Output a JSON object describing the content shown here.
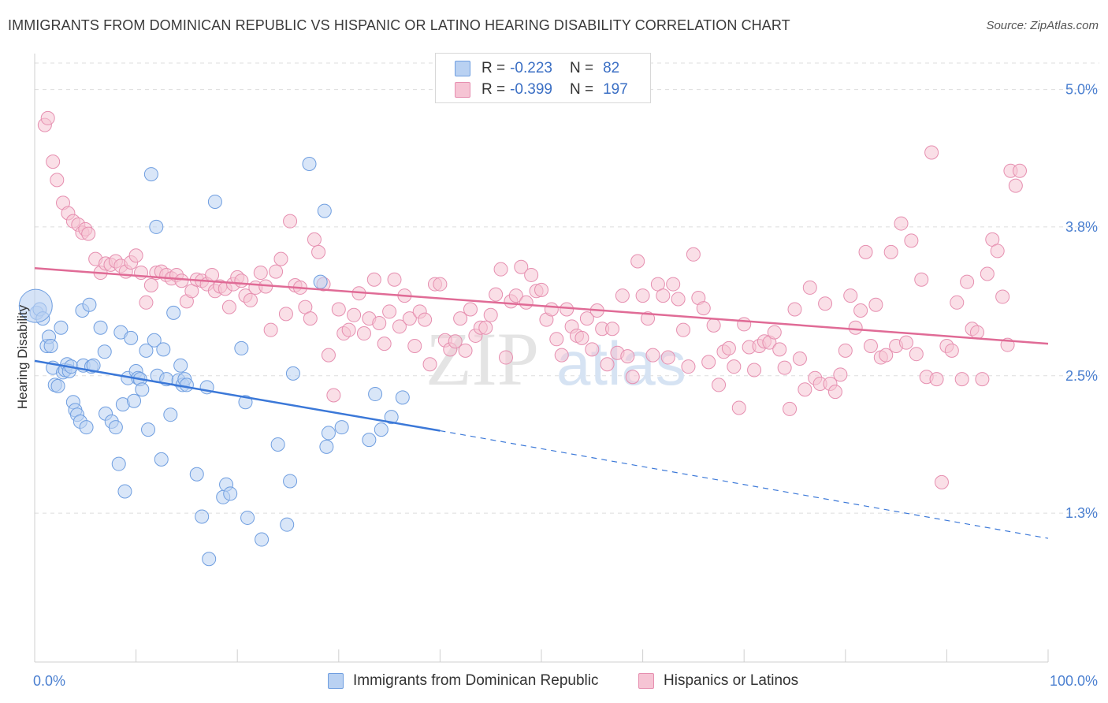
{
  "title": "IMMIGRANTS FROM DOMINICAN REPUBLIC VS HISPANIC OR LATINO HEARING DISABILITY CORRELATION CHART",
  "source": "Source: ZipAtlas.com",
  "colors": {
    "blue": "#3b78d8",
    "blue_fill": "#b9d1f2",
    "pink": "#e06b96",
    "pink_fill": "#f6c4d4",
    "tick": "#4a7fd0",
    "grid": "#dddddd"
  },
  "legend": {
    "r_label": "R =",
    "n_label": "N =",
    "rows": [
      {
        "r": "-0.223",
        "n": "82"
      },
      {
        "r": "-0.399",
        "n": "197"
      }
    ]
  },
  "bottom_legend": [
    "Immigrants from Dominican Republic",
    "Hispanics or Latinos"
  ],
  "chart_data": {
    "type": "scatter",
    "title": "IMMIGRANTS FROM DOMINICAN REPUBLIC VS HISPANIC OR LATINO HEARING DISABILITY CORRELATION CHART",
    "xlabel": "",
    "ylabel": "Hearing Disability",
    "xlim": [
      0,
      100
    ],
    "ylim": [
      0.0,
      5.3
    ],
    "x_tick_labels": [
      "0.0%",
      "100.0%"
    ],
    "y_ticks": [
      1.3,
      2.5,
      3.8,
      5.0
    ],
    "y_tick_labels": [
      "1.3%",
      "2.5%",
      "3.8%",
      "5.0%"
    ],
    "grid": true,
    "legend_position": "top-center",
    "series": [
      {
        "name": "Immigrants from Dominican Republic",
        "color": "#3b78d8",
        "trend": {
          "x": [
            0,
            40
          ],
          "y": [
            2.63,
            2.02
          ],
          "dashed_to": [
            100,
            1.08
          ]
        },
        "points": [
          [
            0.2,
            3.05
          ],
          [
            0.5,
            3.08
          ],
          [
            0.8,
            3.0
          ],
          [
            1.2,
            2.76
          ],
          [
            1.4,
            2.84
          ],
          [
            1.6,
            2.76
          ],
          [
            1.8,
            2.57
          ],
          [
            2.0,
            2.42
          ],
          [
            2.3,
            2.41
          ],
          [
            2.6,
            2.92
          ],
          [
            2.8,
            2.53
          ],
          [
            3.0,
            2.55
          ],
          [
            3.2,
            2.6
          ],
          [
            3.4,
            2.54
          ],
          [
            3.6,
            2.58
          ],
          [
            3.8,
            2.27
          ],
          [
            4.0,
            2.2
          ],
          [
            4.2,
            2.16
          ],
          [
            4.5,
            2.1
          ],
          [
            4.7,
            3.07
          ],
          [
            4.8,
            2.59
          ],
          [
            5.1,
            2.05
          ],
          [
            5.4,
            3.12
          ],
          [
            5.6,
            2.58
          ],
          [
            5.8,
            2.59
          ],
          [
            6.5,
            2.92
          ],
          [
            6.9,
            2.71
          ],
          [
            7.0,
            2.17
          ],
          [
            7.6,
            2.1
          ],
          [
            8.0,
            2.05
          ],
          [
            8.3,
            1.73
          ],
          [
            8.5,
            2.88
          ],
          [
            8.7,
            2.25
          ],
          [
            8.9,
            1.49
          ],
          [
            9.2,
            2.48
          ],
          [
            9.5,
            2.83
          ],
          [
            9.8,
            2.28
          ],
          [
            10.0,
            2.54
          ],
          [
            10.2,
            2.48
          ],
          [
            10.4,
            2.47
          ],
          [
            10.6,
            2.38
          ],
          [
            11.0,
            2.72
          ],
          [
            11.2,
            2.03
          ],
          [
            11.5,
            4.26
          ],
          [
            11.8,
            2.81
          ],
          [
            12.0,
            3.8
          ],
          [
            12.1,
            2.5
          ],
          [
            12.5,
            1.77
          ],
          [
            12.7,
            2.73
          ],
          [
            13.0,
            2.47
          ],
          [
            13.4,
            2.16
          ],
          [
            13.7,
            3.05
          ],
          [
            14.2,
            2.46
          ],
          [
            14.4,
            2.59
          ],
          [
            14.6,
            2.42
          ],
          [
            14.8,
            2.47
          ],
          [
            15.0,
            2.42
          ],
          [
            16.0,
            1.64
          ],
          [
            16.5,
            1.27
          ],
          [
            17.0,
            2.4
          ],
          [
            17.2,
            0.9
          ],
          [
            17.8,
            4.02
          ],
          [
            18.6,
            1.44
          ],
          [
            18.9,
            1.55
          ],
          [
            19.3,
            1.47
          ],
          [
            20.4,
            2.74
          ],
          [
            20.8,
            2.27
          ],
          [
            21.0,
            1.26
          ],
          [
            22.4,
            1.07
          ],
          [
            24.0,
            1.9
          ],
          [
            24.9,
            1.2
          ],
          [
            25.2,
            1.58
          ],
          [
            25.5,
            2.52
          ],
          [
            27.1,
            4.35
          ],
          [
            28.2,
            3.32
          ],
          [
            28.6,
            3.94
          ],
          [
            28.8,
            1.88
          ],
          [
            29.0,
            2.0
          ],
          [
            30.3,
            2.05
          ],
          [
            33.0,
            1.94
          ],
          [
            33.6,
            2.34
          ],
          [
            34.2,
            2.03
          ],
          [
            35.2,
            2.14
          ],
          [
            36.3,
            2.31
          ]
        ]
      },
      {
        "name": "Hispanics or Latinos",
        "color": "#e06b96",
        "trend": {
          "x": [
            0,
            100
          ],
          "y": [
            3.44,
            2.78
          ]
        },
        "points": [
          [
            1.0,
            4.69
          ],
          [
            1.3,
            4.75
          ],
          [
            1.8,
            4.37
          ],
          [
            2.2,
            4.21
          ],
          [
            2.8,
            4.01
          ],
          [
            3.3,
            3.92
          ],
          [
            3.8,
            3.85
          ],
          [
            4.3,
            3.82
          ],
          [
            4.7,
            3.75
          ],
          [
            5.0,
            3.78
          ],
          [
            5.3,
            3.74
          ],
          [
            6.0,
            3.52
          ],
          [
            6.5,
            3.4
          ],
          [
            7.0,
            3.48
          ],
          [
            7.5,
            3.47
          ],
          [
            8.0,
            3.5
          ],
          [
            8.5,
            3.46
          ],
          [
            9.0,
            3.41
          ],
          [
            9.5,
            3.49
          ],
          [
            10.0,
            3.55
          ],
          [
            10.5,
            3.4
          ],
          [
            11.0,
            3.14
          ],
          [
            11.5,
            3.29
          ],
          [
            12.0,
            3.4
          ],
          [
            12.5,
            3.41
          ],
          [
            13.0,
            3.38
          ],
          [
            13.5,
            3.35
          ],
          [
            14.0,
            3.38
          ],
          [
            14.5,
            3.33
          ],
          [
            15.0,
            3.15
          ],
          [
            15.5,
            3.24
          ],
          [
            16.0,
            3.34
          ],
          [
            16.5,
            3.33
          ],
          [
            17.0,
            3.3
          ],
          [
            17.5,
            3.38
          ],
          [
            17.8,
            3.24
          ],
          [
            18.3,
            3.28
          ],
          [
            18.8,
            3.26
          ],
          [
            19.2,
            3.1
          ],
          [
            19.6,
            3.3
          ],
          [
            20.0,
            3.36
          ],
          [
            20.4,
            3.33
          ],
          [
            20.8,
            3.2
          ],
          [
            21.3,
            3.16
          ],
          [
            21.8,
            3.27
          ],
          [
            22.3,
            3.4
          ],
          [
            22.8,
            3.28
          ],
          [
            23.3,
            2.9
          ],
          [
            23.8,
            3.41
          ],
          [
            24.3,
            3.52
          ],
          [
            24.8,
            3.04
          ],
          [
            25.2,
            3.85
          ],
          [
            25.7,
            3.29
          ],
          [
            26.2,
            3.27
          ],
          [
            26.7,
            3.1
          ],
          [
            27.2,
            3.0
          ],
          [
            27.6,
            3.69
          ],
          [
            28.0,
            3.58
          ],
          [
            28.5,
            3.3
          ],
          [
            29.0,
            2.68
          ],
          [
            29.5,
            2.33
          ],
          [
            30.0,
            3.08
          ],
          [
            30.5,
            2.87
          ],
          [
            31.0,
            2.9
          ],
          [
            31.5,
            3.03
          ],
          [
            32.0,
            3.22
          ],
          [
            32.5,
            2.87
          ],
          [
            33.0,
            3.0
          ],
          [
            33.5,
            3.34
          ],
          [
            34.0,
            2.96
          ],
          [
            34.5,
            2.78
          ],
          [
            35.0,
            3.06
          ],
          [
            35.5,
            3.34
          ],
          [
            36.0,
            2.93
          ],
          [
            36.5,
            3.2
          ],
          [
            37.0,
            3.0
          ],
          [
            37.5,
            2.76
          ],
          [
            38.0,
            3.06
          ],
          [
            38.5,
            2.99
          ],
          [
            39.0,
            2.6
          ],
          [
            39.5,
            3.3
          ],
          [
            40.0,
            3.3
          ],
          [
            40.5,
            2.81
          ],
          [
            41.0,
            2.73
          ],
          [
            41.5,
            2.8
          ],
          [
            42.0,
            3.0
          ],
          [
            42.5,
            2.72
          ],
          [
            43.0,
            3.08
          ],
          [
            43.5,
            2.85
          ],
          [
            44.0,
            2.92
          ],
          [
            44.5,
            2.92
          ],
          [
            45.0,
            3.03
          ],
          [
            45.5,
            3.21
          ],
          [
            46.0,
            3.43
          ],
          [
            46.5,
            2.66
          ],
          [
            47.0,
            3.15
          ],
          [
            47.5,
            3.2
          ],
          [
            48.0,
            3.45
          ],
          [
            48.5,
            3.14
          ],
          [
            49.0,
            3.38
          ],
          [
            49.5,
            3.24
          ],
          [
            50.0,
            3.25
          ],
          [
            50.5,
            2.99
          ],
          [
            51.0,
            3.08
          ],
          [
            51.5,
            2.82
          ],
          [
            52.0,
            2.68
          ],
          [
            52.5,
            3.08
          ],
          [
            53.0,
            2.93
          ],
          [
            53.5,
            2.85
          ],
          [
            54.0,
            2.83
          ],
          [
            54.5,
            3.0
          ],
          [
            55.0,
            2.73
          ],
          [
            55.5,
            3.07
          ],
          [
            56.0,
            2.91
          ],
          [
            56.5,
            2.6
          ],
          [
            57.0,
            2.91
          ],
          [
            57.5,
            2.7
          ],
          [
            58.0,
            3.2
          ],
          [
            58.5,
            2.67
          ],
          [
            59.0,
            2.49
          ],
          [
            59.5,
            3.5
          ],
          [
            60.0,
            3.2
          ],
          [
            60.5,
            3.0
          ],
          [
            61.0,
            2.68
          ],
          [
            61.5,
            3.3
          ],
          [
            62.0,
            3.2
          ],
          [
            62.5,
            2.66
          ],
          [
            63.0,
            3.3
          ],
          [
            63.5,
            3.17
          ],
          [
            64.0,
            2.9
          ],
          [
            64.5,
            2.58
          ],
          [
            65.0,
            3.56
          ],
          [
            65.5,
            3.18
          ],
          [
            66.0,
            3.09
          ],
          [
            66.5,
            2.62
          ],
          [
            67.0,
            2.94
          ],
          [
            67.5,
            2.42
          ],
          [
            68.0,
            2.71
          ],
          [
            68.5,
            2.74
          ],
          [
            69.0,
            2.58
          ],
          [
            69.5,
            2.22
          ],
          [
            70.0,
            2.95
          ],
          [
            70.5,
            2.75
          ],
          [
            71.0,
            2.55
          ],
          [
            71.5,
            2.76
          ],
          [
            72.0,
            2.8
          ],
          [
            72.5,
            2.79
          ],
          [
            73.0,
            2.88
          ],
          [
            73.5,
            2.73
          ],
          [
            74.0,
            2.57
          ],
          [
            74.5,
            2.21
          ],
          [
            75.0,
            3.08
          ],
          [
            75.5,
            2.65
          ],
          [
            76.0,
            2.38
          ],
          [
            76.5,
            3.27
          ],
          [
            77.0,
            2.48
          ],
          [
            77.5,
            2.43
          ],
          [
            78.0,
            3.13
          ],
          [
            78.5,
            2.43
          ],
          [
            79.0,
            2.36
          ],
          [
            79.5,
            2.51
          ],
          [
            80.0,
            2.72
          ],
          [
            80.5,
            3.2
          ],
          [
            81.0,
            2.92
          ],
          [
            81.5,
            3.07
          ],
          [
            82.0,
            3.58
          ],
          [
            82.5,
            2.76
          ],
          [
            83.0,
            3.12
          ],
          [
            83.5,
            2.66
          ],
          [
            84.0,
            2.68
          ],
          [
            84.5,
            3.58
          ],
          [
            85.0,
            2.76
          ],
          [
            85.5,
            3.83
          ],
          [
            86.0,
            2.79
          ],
          [
            86.5,
            3.68
          ],
          [
            87.0,
            2.69
          ],
          [
            87.5,
            3.34
          ],
          [
            88.0,
            2.49
          ],
          [
            88.5,
            4.45
          ],
          [
            89.0,
            2.47
          ],
          [
            89.5,
            1.57
          ],
          [
            90.0,
            2.76
          ],
          [
            90.5,
            2.72
          ],
          [
            91.0,
            3.14
          ],
          [
            91.5,
            2.47
          ],
          [
            92.0,
            3.32
          ],
          [
            92.5,
            2.91
          ],
          [
            93.0,
            2.88
          ],
          [
            93.5,
            2.47
          ],
          [
            94.0,
            3.39
          ],
          [
            94.5,
            3.69
          ],
          [
            95.0,
            3.59
          ],
          [
            95.5,
            3.19
          ],
          [
            96.0,
            2.77
          ],
          [
            96.3,
            4.29
          ],
          [
            96.8,
            4.16
          ],
          [
            97.2,
            4.29
          ]
        ]
      }
    ]
  }
}
